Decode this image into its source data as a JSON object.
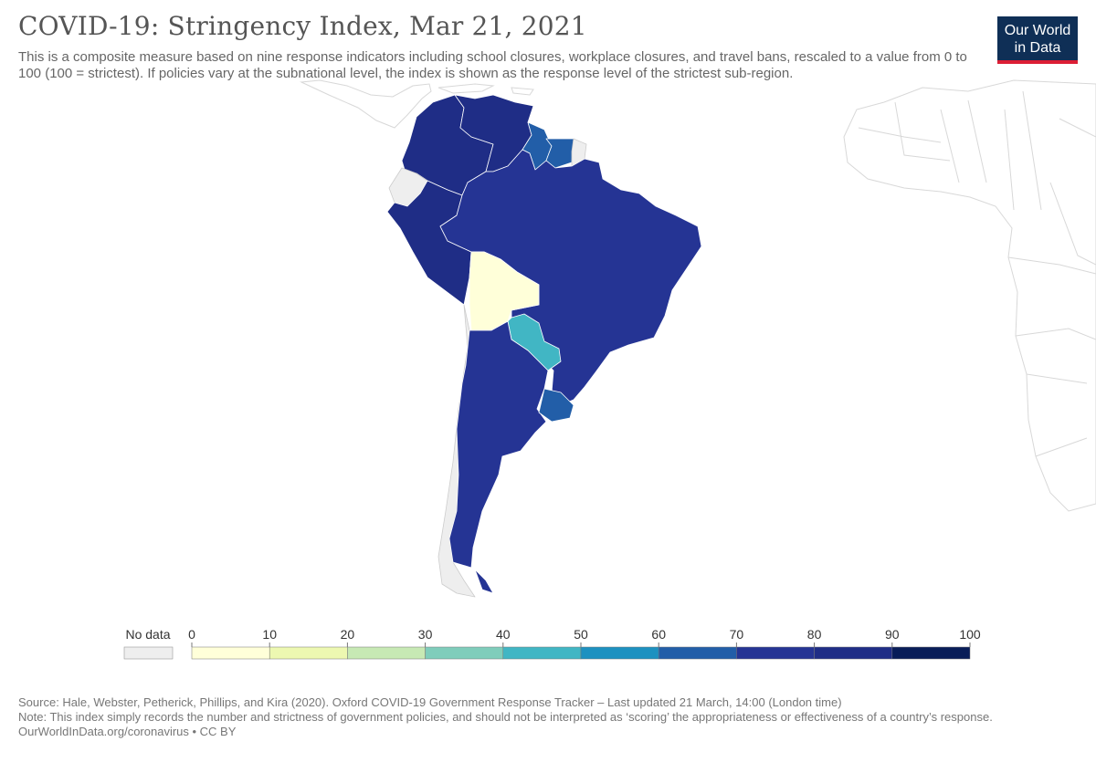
{
  "title": "COVID-19: Stringency Index, Mar 21, 2021",
  "subtitle": "This is a composite measure based on nine response indicators including school closures, workplace closures, and travel bans, rescaled to a value from 0 to 100 (100 = strictest). If policies vary at the subnational level, the index is shown as the response level of the strictest sub-region.",
  "logo": {
    "line1": "Our World",
    "line2": "in Data"
  },
  "legend": {
    "no_data_label": "No data",
    "no_data_color": "#eeeeee",
    "ticks": [
      "0",
      "10",
      "20",
      "30",
      "40",
      "50",
      "60",
      "70",
      "80",
      "90",
      "100"
    ],
    "bin_colors": [
      "#ffffd9",
      "#edf8b1",
      "#c7e9b4",
      "#7fcdbb",
      "#41b6c4",
      "#1d91c0",
      "#225ea8",
      "#253494",
      "#1f2d86",
      "#081d58"
    ]
  },
  "map_data": {
    "countries": [
      {
        "name": "Colombia",
        "value": 85
      },
      {
        "name": "Venezuela",
        "value": 88
      },
      {
        "name": "Guyana",
        "value": 65
      },
      {
        "name": "Suriname",
        "value": 67
      },
      {
        "name": "French Guiana",
        "value": null
      },
      {
        "name": "Ecuador",
        "value": null
      },
      {
        "name": "Peru",
        "value": 85
      },
      {
        "name": "Brazil",
        "value": 78
      },
      {
        "name": "Bolivia",
        "value": 5
      },
      {
        "name": "Paraguay",
        "value": 45
      },
      {
        "name": "Chile",
        "value": null
      },
      {
        "name": "Argentina",
        "value": 78
      },
      {
        "name": "Uruguay",
        "value": 65
      }
    ]
  },
  "footer": {
    "source": "Source: Hale, Webster, Petherick, Phillips, and Kira (2020). Oxford COVID-19 Government Response Tracker – Last updated 21 March, 14:00 (London time)",
    "note": "Note: This index simply records the number and strictness of government policies, and should not be interpreted as ‘scoring’ the appropriateness or effectiveness of a country’s response.",
    "url": "OurWorldInData.org/coronavirus • CC BY"
  }
}
